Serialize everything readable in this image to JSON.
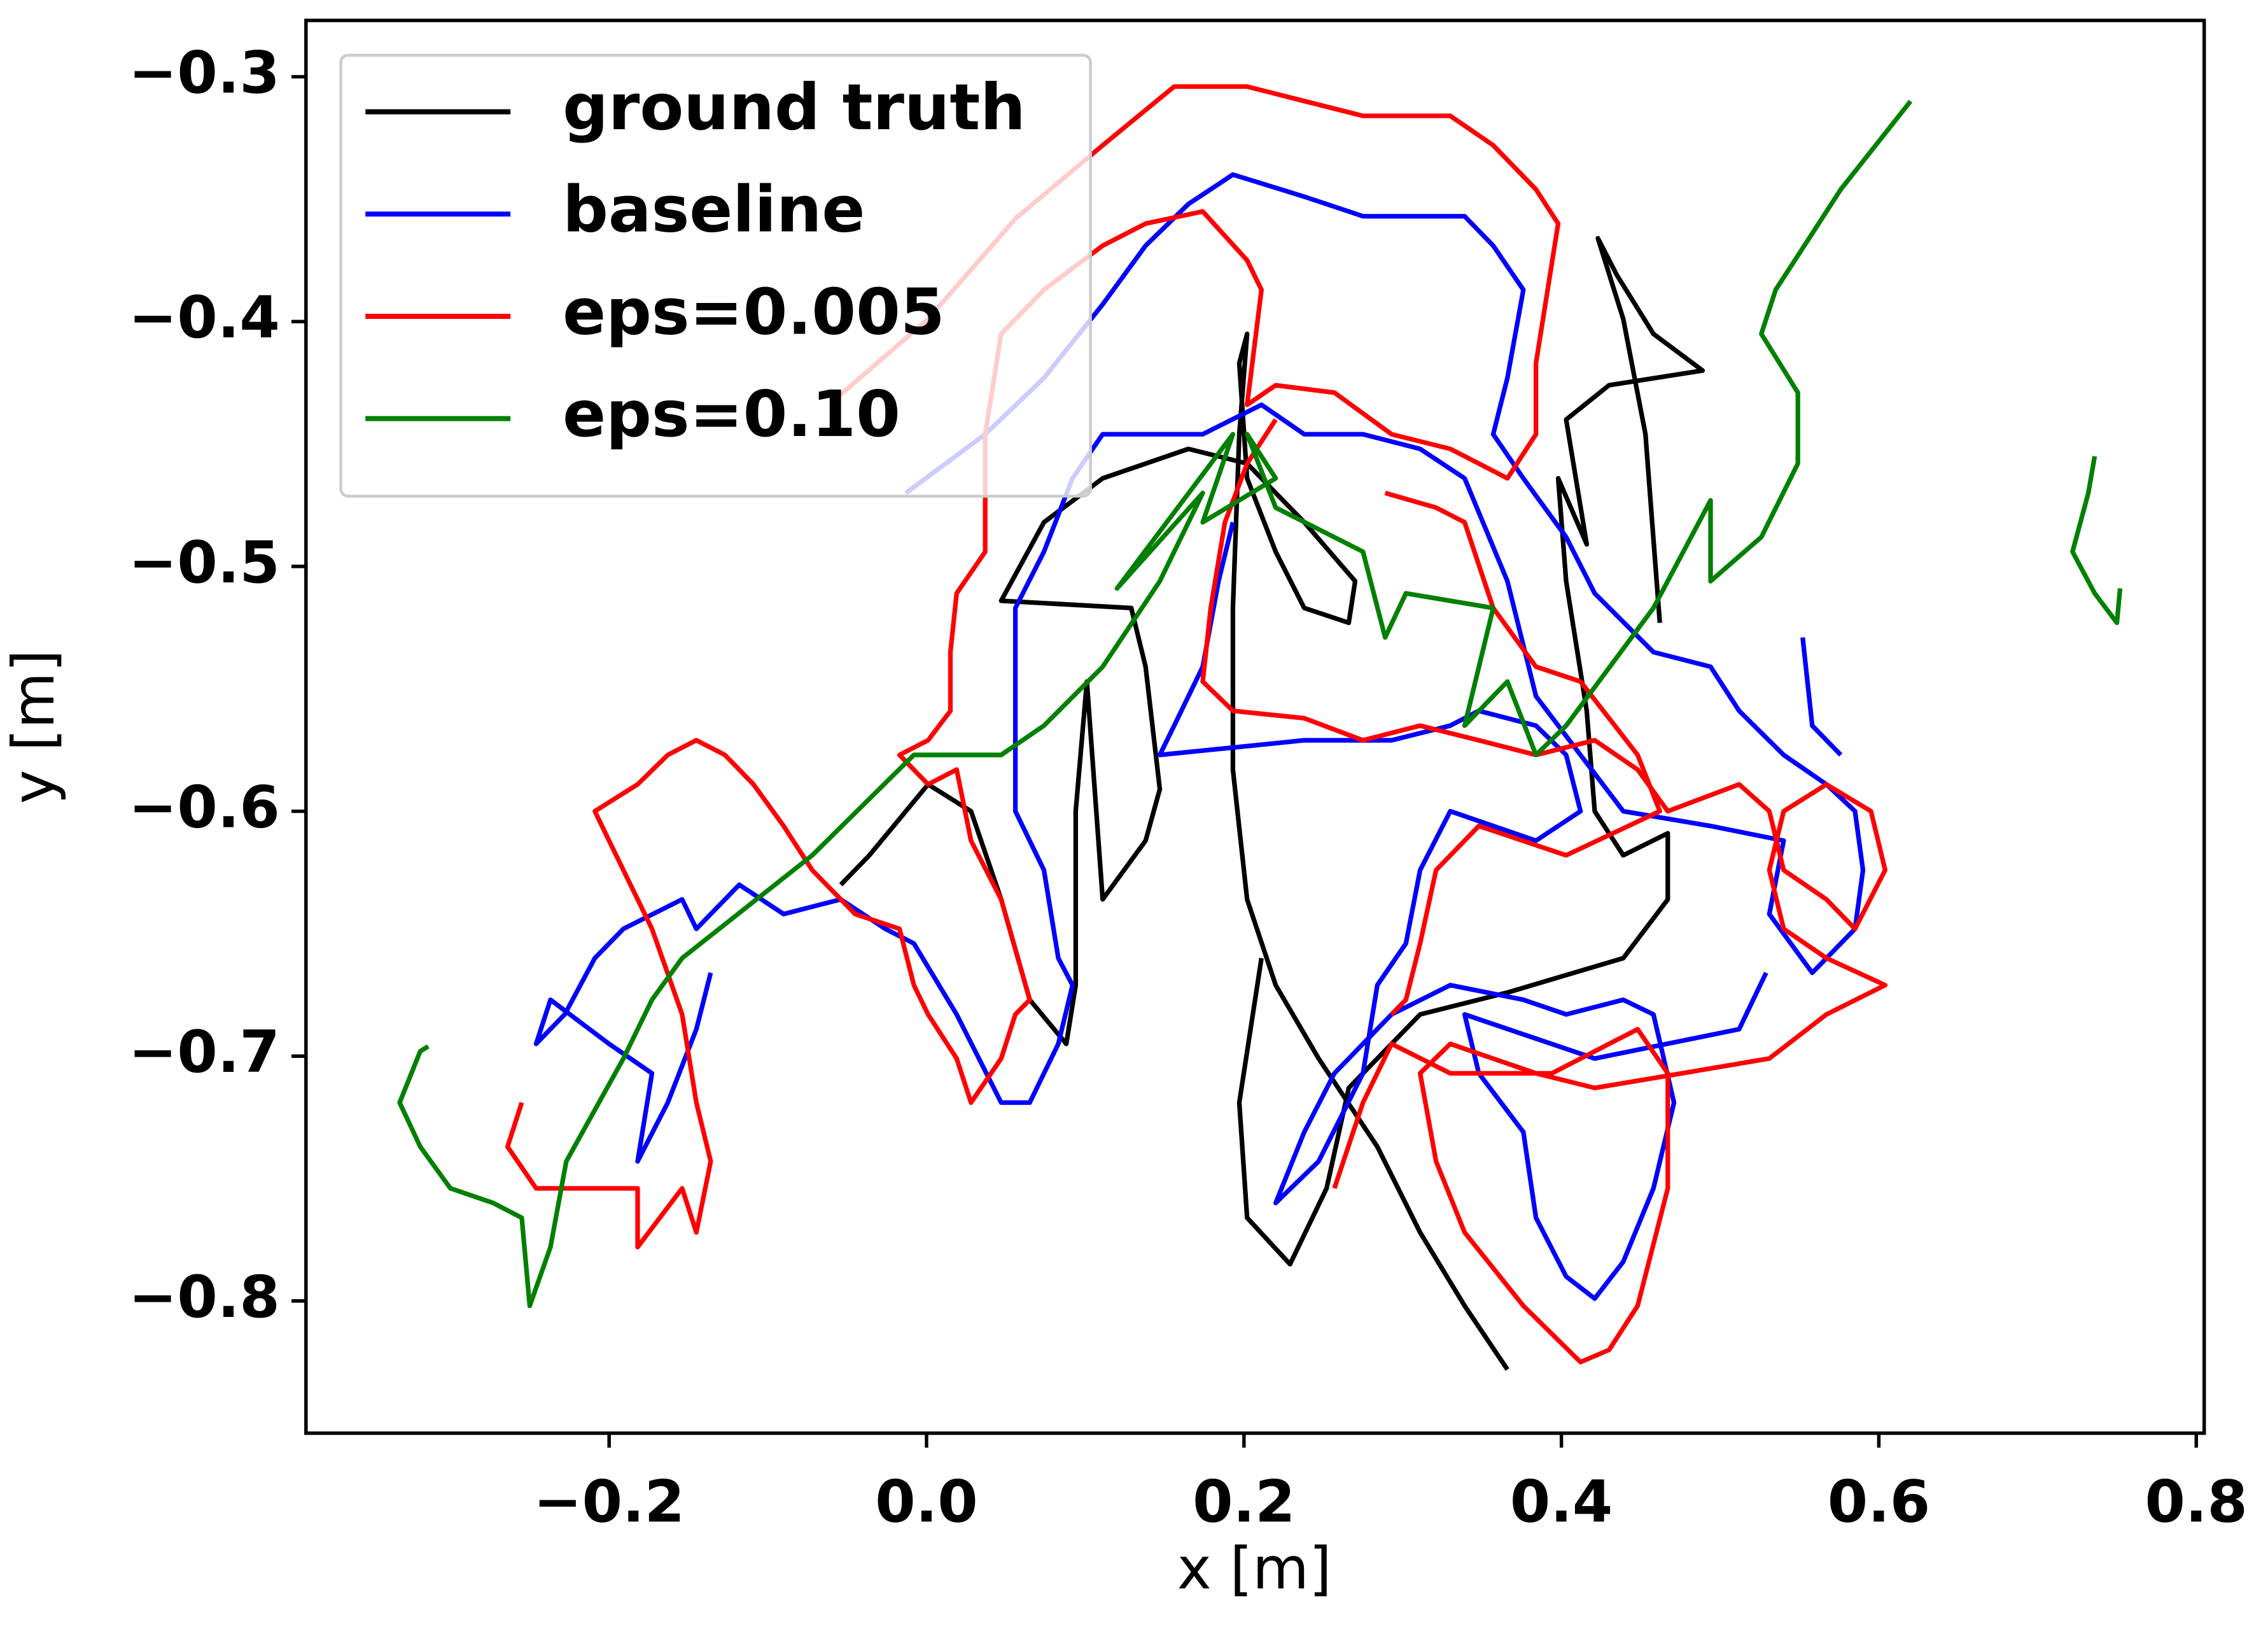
{
  "chart_data": {
    "type": "line",
    "xlabel": "x [m]",
    "ylabel": "y [m]",
    "xlim": [
      -0.391,
      0.805
    ],
    "ylim": [
      -0.854,
      -0.277
    ],
    "xticks": [
      {
        "value": -0.2,
        "label": "−0.2"
      },
      {
        "value": 0,
        "label": "0.0"
      },
      0.2,
      0.4,
      0.6,
      0.8
    ],
    "yticks": [
      {
        "value": -0.3,
        "label": "−0.3"
      },
      {
        "value": -0.4,
        "label": "−0.4"
      },
      {
        "value": -0.5,
        "label": "−0.5"
      },
      {
        "value": -0.6,
        "label": "−0.6"
      },
      {
        "value": -0.7,
        "label": "−0.7"
      },
      {
        "value": -0.8,
        "label": "−0.8"
      }
    ],
    "grid": false,
    "legend": "upper left",
    "series": [
      {
        "name": "ground truth",
        "color": "#000000",
        "x": [
          -0.054,
          -0.036,
          0.001,
          0.028,
          0.047,
          0.065,
          0.088,
          0.094,
          0.094,
          0.101,
          0.111,
          0.138,
          0.147,
          0.138,
          0.129,
          0.047,
          0.074,
          0.111,
          0.165,
          0.202,
          0.238,
          0.27,
          0.266,
          0.238,
          0.22,
          0.202,
          0.197,
          0.202,
          0.197,
          0.193,
          0.193,
          0.202,
          0.22,
          0.247,
          0.284,
          0.311,
          0.339,
          0.366,
          null,
          0.211,
          0.197,
          0.202,
          0.229,
          0.252,
          0.266,
          0.311,
          0.366,
          0.439,
          0.467,
          0.467,
          0.439,
          0.421,
          0.416,
          0.403,
          0.398,
          0.416,
          0.403,
          0.43,
          0.489,
          0.458,
          0.435,
          0.423,
          0.439,
          0.453,
          0.462
        ],
        "values": [
          -0.63,
          -0.618,
          -0.589,
          -0.6,
          -0.636,
          -0.677,
          -0.695,
          -0.671,
          -0.6,
          -0.547,
          -0.636,
          -0.612,
          -0.591,
          -0.541,
          -0.517,
          -0.514,
          -0.482,
          -0.464,
          -0.452,
          -0.458,
          -0.482,
          -0.506,
          -0.523,
          -0.517,
          -0.494,
          -0.464,
          -0.417,
          -0.405,
          -0.446,
          -0.517,
          -0.583,
          -0.636,
          -0.671,
          -0.701,
          -0.737,
          -0.772,
          -0.802,
          -0.828,
          null,
          -0.66,
          -0.719,
          -0.766,
          -0.785,
          -0.754,
          -0.713,
          -0.683,
          -0.674,
          -0.66,
          -0.636,
          -0.609,
          -0.618,
          -0.6,
          -0.559,
          -0.506,
          -0.464,
          -0.491,
          -0.44,
          -0.426,
          -0.42,
          -0.405,
          -0.381,
          -0.366,
          -0.399,
          -0.446,
          -0.523
        ]
      },
      {
        "name": "baseline",
        "color": "#0000ff",
        "x": [
          -0.013,
          0.037,
          0.074,
          0.111,
          0.138,
          0.165,
          0.193,
          0.238,
          0.275,
          0.339,
          0.357,
          0.376,
          0.366,
          0.357,
          0.376,
          0.403,
          0.421,
          0.458,
          0.494,
          0.512,
          0.54,
          0.567,
          0.585,
          0.59,
          0.585,
          0.558,
          0.531,
          0.54,
          0.494,
          0.439,
          0.412,
          0.384,
          0.366,
          0.339,
          0.311,
          0.275,
          0.238,
          0.211,
          0.174,
          0.147,
          0.111,
          0.092,
          0.074,
          0.056,
          0.056,
          0.056,
          0.074,
          0.083,
          0.092,
          0.083,
          0.065,
          0.047,
          0.019,
          -0.008,
          -0.026,
          -0.054,
          -0.09,
          -0.118,
          -0.145,
          -0.154,
          -0.191,
          -0.209,
          -0.228,
          -0.246,
          -0.237,
          -0.2,
          -0.173,
          -0.182,
          -0.163,
          -0.145,
          -0.136,
          null,
          0.193,
          0.184,
          0.174,
          0.156,
          0.147,
          0.193,
          0.238,
          0.293,
          0.33,
          0.348,
          0.384,
          0.403,
          0.412,
          0.384,
          0.33,
          0.311,
          0.302,
          0.284,
          0.275,
          0.247,
          0.22,
          0.238,
          0.257,
          0.293,
          0.33,
          0.376,
          0.403,
          0.439,
          0.458,
          0.471,
          0.458,
          0.439,
          0.421,
          0.403,
          0.384,
          0.376,
          0.348,
          0.339,
          0.421,
          0.512,
          0.529,
          null,
          0.552,
          0.558,
          0.576
        ],
        "values": [
          -0.47,
          -0.446,
          -0.423,
          -0.393,
          -0.369,
          -0.352,
          -0.34,
          -0.349,
          -0.357,
          -0.357,
          -0.369,
          -0.387,
          -0.423,
          -0.446,
          -0.464,
          -0.488,
          -0.511,
          -0.535,
          -0.541,
          -0.559,
          -0.577,
          -0.589,
          -0.6,
          -0.624,
          -0.648,
          -0.666,
          -0.642,
          -0.612,
          -0.606,
          -0.6,
          -0.577,
          -0.553,
          -0.506,
          -0.464,
          -0.452,
          -0.446,
          -0.446,
          -0.434,
          -0.446,
          -0.446,
          -0.446,
          -0.464,
          -0.494,
          -0.517,
          -0.553,
          -0.6,
          -0.624,
          -0.66,
          -0.671,
          -0.695,
          -0.719,
          -0.719,
          -0.683,
          -0.654,
          -0.648,
          -0.636,
          -0.642,
          -0.63,
          -0.648,
          -0.636,
          -0.648,
          -0.66,
          -0.683,
          -0.695,
          -0.677,
          -0.695,
          -0.707,
          -0.743,
          -0.719,
          -0.689,
          -0.666,
          null,
          -0.482,
          -0.506,
          -0.541,
          -0.565,
          -0.577,
          -0.574,
          -0.571,
          -0.571,
          -0.565,
          -0.559,
          -0.565,
          -0.577,
          -0.6,
          -0.612,
          -0.6,
          -0.624,
          -0.654,
          -0.671,
          -0.707,
          -0.743,
          -0.76,
          -0.731,
          -0.707,
          -0.683,
          -0.671,
          -0.677,
          -0.683,
          -0.677,
          -0.683,
          -0.719,
          -0.754,
          -0.784,
          -0.799,
          -0.79,
          -0.766,
          -0.731,
          -0.707,
          -0.683,
          -0.701,
          -0.689,
          -0.666,
          null,
          -0.529,
          -0.565,
          -0.577
        ]
      },
      {
        "name": "eps=0.005",
        "color": "#ff0000",
        "x": [
          -0.058,
          0.001,
          0.056,
          0.111,
          0.156,
          0.202,
          0.22,
          0.275,
          0.33,
          0.357,
          0.384,
          0.398,
          0.384,
          0.384,
          0.366,
          0.348,
          0.33,
          0.293,
          0.257,
          0.22,
          0.202,
          0.211,
          0.202,
          0.174,
          0.138,
          0.111,
          0.074,
          0.047,
          0.037,
          0.037,
          0.019,
          0.015,
          0.015,
          0.001,
          -0.017,
          0.001,
          0.019,
          0.028,
          0.047,
          0.065,
          0.056,
          0.047,
          0.028,
          0.019,
          0.001,
          -0.008,
          -0.017,
          -0.045,
          -0.072,
          -0.09,
          -0.109,
          -0.127,
          -0.145,
          -0.163,
          -0.182,
          -0.209,
          -0.2,
          -0.182,
          -0.173,
          -0.154,
          -0.145,
          -0.136,
          -0.145,
          -0.154,
          -0.182,
          -0.182,
          -0.2,
          -0.237,
          -0.246,
          -0.264,
          -0.255,
          null,
          0.22,
          0.202,
          0.188,
          0.179,
          0.174,
          0.193,
          0.238,
          0.275,
          0.311,
          0.348,
          0.384,
          0.421,
          0.448,
          0.467,
          0.512,
          0.531,
          0.54,
          0.567,
          0.585,
          0.604,
          0.595,
          0.567,
          0.54,
          0.531,
          0.54,
          0.567,
          0.604,
          0.567,
          0.531,
          0.476,
          0.421,
          0.384,
          0.33,
          0.311,
          0.321,
          0.339,
          0.376,
          0.412,
          0.43,
          0.448,
          0.467,
          0.467,
          0.448,
          0.394,
          0.33,
          0.293,
          0.275,
          0.257,
          null,
          0.289,
          0.321,
          0.339,
          0.357,
          0.384,
          0.412,
          0.448,
          0.462,
          0.403,
          0.348,
          0.321,
          0.311,
          0.302,
          0.293
        ],
        "values": [
          -0.432,
          -0.399,
          -0.358,
          -0.328,
          -0.304,
          -0.304,
          -0.307,
          -0.316,
          -0.316,
          -0.328,
          -0.346,
          -0.36,
          -0.417,
          -0.446,
          -0.464,
          -0.458,
          -0.452,
          -0.446,
          -0.429,
          -0.426,
          -0.434,
          -0.387,
          -0.375,
          -0.355,
          -0.36,
          -0.369,
          -0.387,
          -0.405,
          -0.446,
          -0.494,
          -0.511,
          -0.535,
          -0.559,
          -0.571,
          -0.577,
          -0.589,
          -0.583,
          -0.612,
          -0.636,
          -0.677,
          -0.683,
          -0.701,
          -0.719,
          -0.701,
          -0.683,
          -0.671,
          -0.648,
          -0.642,
          -0.624,
          -0.606,
          -0.589,
          -0.577,
          -0.571,
          -0.577,
          -0.589,
          -0.6,
          -0.612,
          -0.636,
          -0.648,
          -0.683,
          -0.719,
          -0.743,
          -0.772,
          -0.754,
          -0.778,
          -0.754,
          -0.754,
          -0.754,
          -0.754,
          -0.737,
          -0.719,
          null,
          -0.44,
          -0.458,
          -0.482,
          -0.517,
          -0.547,
          -0.559,
          -0.562,
          -0.571,
          -0.565,
          -0.571,
          -0.577,
          -0.571,
          -0.583,
          -0.6,
          -0.589,
          -0.6,
          -0.624,
          -0.636,
          -0.648,
          -0.624,
          -0.6,
          -0.589,
          -0.6,
          -0.624,
          -0.648,
          -0.66,
          -0.671,
          -0.683,
          -0.701,
          -0.707,
          -0.713,
          -0.707,
          -0.695,
          -0.707,
          -0.743,
          -0.772,
          -0.802,
          -0.825,
          -0.82,
          -0.802,
          -0.754,
          -0.707,
          -0.689,
          -0.707,
          -0.707,
          -0.695,
          -0.719,
          -0.754,
          null,
          -0.47,
          -0.476,
          -0.482,
          -0.517,
          -0.541,
          -0.547,
          -0.577,
          -0.6,
          -0.618,
          -0.606,
          -0.624,
          -0.654,
          -0.677,
          -0.683
        ]
      },
      {
        "name": "eps=0.10",
        "color": "#008000",
        "x": [
          0.62,
          0.576,
          0.558,
          0.535,
          0.526,
          0.549,
          0.549,
          0.526,
          0.494,
          0.494,
          0.458,
          0.403,
          0.384,
          0.366,
          0.339,
          0.357,
          0.302,
          0.289,
          0.275,
          0.22,
          0.202,
          0.22,
          0.174,
          0.193,
          0.12,
          0.174,
          0.147,
          0.111,
          0.074,
          0.047,
          -0.008,
          -0.072,
          -0.154,
          -0.173,
          -0.191,
          -0.227,
          -0.237,
          -0.25,
          -0.255,
          -0.273,
          -0.3,
          -0.319,
          -0.332,
          -0.319,
          -0.314,
          null,
          0.736,
          0.732,
          0.722,
          0.736,
          0.75,
          0.752
        ],
        "values": [
          -0.31,
          -0.346,
          -0.364,
          -0.387,
          -0.405,
          -0.429,
          -0.458,
          -0.488,
          -0.506,
          -0.473,
          -0.517,
          -0.565,
          -0.577,
          -0.547,
          -0.565,
          -0.517,
          -0.511,
          -0.529,
          -0.494,
          -0.476,
          -0.446,
          -0.464,
          -0.482,
          -0.446,
          -0.509,
          -0.47,
          -0.506,
          -0.541,
          -0.565,
          -0.577,
          -0.577,
          -0.618,
          -0.66,
          -0.677,
          -0.701,
          -0.743,
          -0.778,
          -0.802,
          -0.766,
          -0.76,
          -0.754,
          -0.737,
          -0.719,
          -0.698,
          -0.696,
          null,
          -0.455,
          -0.47,
          -0.494,
          -0.511,
          -0.523,
          -0.509
        ]
      }
    ]
  }
}
